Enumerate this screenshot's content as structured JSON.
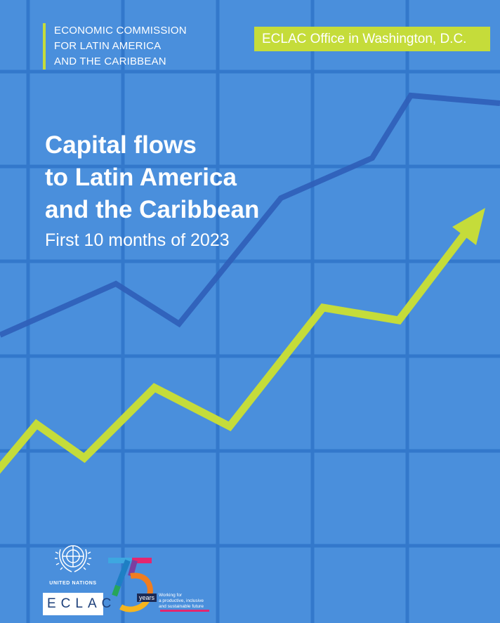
{
  "organization": {
    "lines": [
      "ECONOMIC COMMISSION",
      "FOR LATIN AMERICA",
      "AND THE CARIBBEAN"
    ]
  },
  "office": "ECLAC Office in Washington, D.C.",
  "title": {
    "lines": [
      "Capital flows",
      "to Latin America",
      "and the Caribbean"
    ]
  },
  "subtitle": "First 10 months of 2023",
  "logos": {
    "un_text": "UNITED NATIONS",
    "eclac_text": "ECLAC",
    "anniversary_years": "years",
    "anniversary_motto": [
      "Working for",
      "a productive, inclusive",
      "and sustainable future"
    ]
  },
  "colors": {
    "background": "#4a8fdc",
    "grid": "#3378cb",
    "accent_green": "#c5dc3a",
    "dark_line": "#2f5eb8"
  }
}
